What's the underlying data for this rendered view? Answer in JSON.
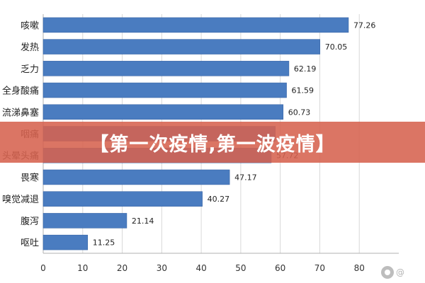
{
  "chart_data": {
    "type": "bar",
    "orientation": "horizontal",
    "categories": [
      "咳嗽",
      "发热",
      "乏力",
      "全身酸痛",
      "流涕鼻塞",
      "咽痛",
      "头晕头痛",
      "畏寒",
      "嗅觉减退",
      "腹泻",
      "呕吐"
    ],
    "values": [
      77.26,
      70.05,
      62.19,
      61.59,
      60.73,
      58.75,
      57.72,
      47.17,
      40.27,
      21.14,
      11.25
    ],
    "value_labels": [
      "77.26",
      "70.05",
      "62.19",
      "61.59",
      "60.73",
      "",
      "57.72",
      "47.17",
      "40.27",
      "21.14",
      "11.25"
    ],
    "highlighted_categories": [
      5,
      6
    ],
    "title": "",
    "xlabel": "",
    "ylabel": "",
    "xlim": [
      0,
      90
    ],
    "xticks": [
      "0",
      "10",
      "20",
      "30",
      "40",
      "50",
      "60",
      "70",
      "80"
    ],
    "grid": "vertical",
    "legend": "none",
    "colors": {
      "bar": "#4a7cc0",
      "bar_edge": "#3a66a6",
      "highlight_label": "#cc2222"
    }
  },
  "banner": {
    "text": "【第一次疫情,第一波疫情】"
  },
  "watermark": {
    "icon": "weibo-icon",
    "text": "@"
  }
}
